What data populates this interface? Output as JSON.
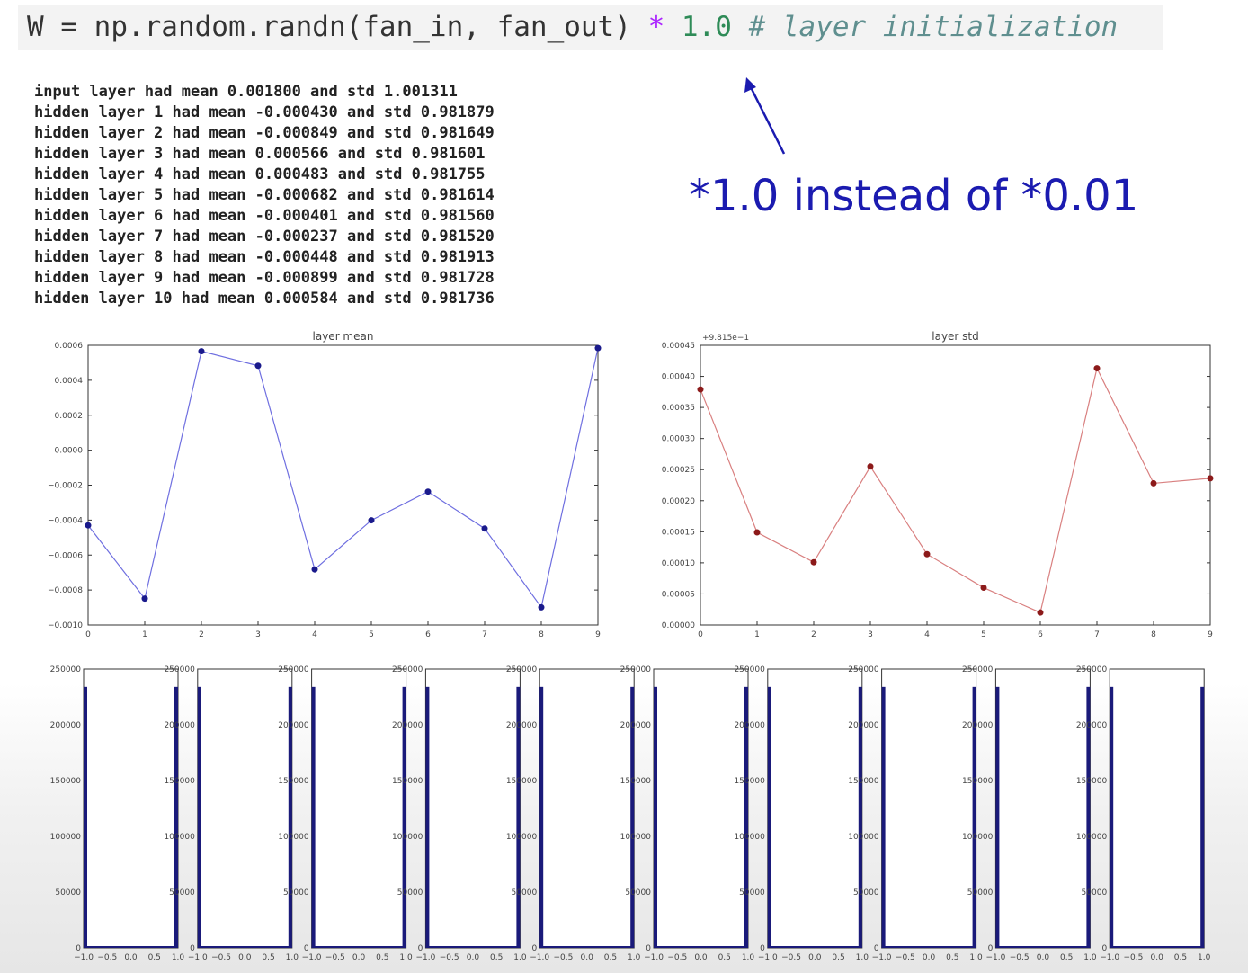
{
  "code": {
    "prefix": "W = np.random.randn(fan_in, fan_out) ",
    "op": "*",
    "num": " 1.0 ",
    "comment": "# layer initialization"
  },
  "log_lines": [
    "input layer had mean 0.001800 and std 1.001311",
    "hidden layer 1 had mean -0.000430 and std 0.981879",
    "hidden layer 2 had mean -0.000849 and std 0.981649",
    "hidden layer 3 had mean 0.000566 and std 0.981601",
    "hidden layer 4 had mean 0.000483 and std 0.981755",
    "hidden layer 5 had mean -0.000682 and std 0.981614",
    "hidden layer 6 had mean -0.000401 and std 0.981560",
    "hidden layer 7 had mean -0.000237 and std 0.981520",
    "hidden layer 8 had mean -0.000448 and std 0.981913",
    "hidden layer 9 had mean -0.000899 and std 0.981728",
    "hidden layer 10 had mean 0.000584 and std 0.981736"
  ],
  "annotation": "*1.0 instead of *0.01",
  "colors": {
    "mean_line": "#6f6fe0",
    "mean_marker": "#1a1a8c",
    "std_line": "#d98080",
    "std_marker": "#8c1a1a",
    "hist_bar": "#1a1a7a",
    "annotation": "#1b1bb0"
  },
  "chart_data": [
    {
      "type": "line",
      "title": "layer mean",
      "x": [
        0,
        1,
        2,
        3,
        4,
        5,
        6,
        7,
        8,
        9
      ],
      "y": [
        -0.00043,
        -0.000849,
        0.000566,
        0.000483,
        -0.000682,
        -0.000401,
        -0.000237,
        -0.000448,
        -0.000899,
        0.000584
      ],
      "xlim": [
        0,
        9
      ],
      "ylim": [
        -0.001,
        0.0006
      ],
      "yticks": [
        0.0006,
        0.0004,
        0.0002,
        0.0,
        -0.0002,
        -0.0004,
        -0.0006,
        -0.0008,
        -0.001
      ],
      "ytick_labels": [
        "0.0006",
        "0.0004",
        "0.0002",
        "0.0000",
        "−0.0002",
        "−0.0004",
        "−0.0006",
        "−0.0008",
        "−0.0010"
      ],
      "xtick_labels": [
        "0",
        "1",
        "2",
        "3",
        "4",
        "5",
        "6",
        "7",
        "8",
        "9"
      ]
    },
    {
      "type": "line",
      "title": "layer std",
      "offset_label": "+9.815e−1",
      "x": [
        0,
        1,
        2,
        3,
        4,
        5,
        6,
        7,
        8,
        9
      ],
      "y": [
        0.000379,
        0.000149,
        0.000101,
        0.000255,
        0.000114,
        6e-05,
        2e-05,
        0.000413,
        0.000228,
        0.000236
      ],
      "xlim": [
        0,
        9
      ],
      "ylim": [
        0.0,
        0.00045
      ],
      "yticks": [
        0.00045,
        0.0004,
        0.00035,
        0.0003,
        0.00025,
        0.0002,
        0.00015,
        0.0001,
        5e-05,
        0.0
      ],
      "ytick_labels": [
        "0.00045",
        "0.00040",
        "0.00035",
        "0.00030",
        "0.00025",
        "0.00020",
        "0.00015",
        "0.00010",
        "0.00005",
        "0.00000"
      ],
      "xtick_labels": [
        "0",
        "1",
        "2",
        "3",
        "4",
        "5",
        "6",
        "7",
        "8",
        "9"
      ]
    },
    {
      "type": "bar",
      "subplots": 10,
      "ylim": [
        0,
        250000
      ],
      "yticks": [
        250000,
        200000,
        150000,
        100000,
        50000,
        0
      ],
      "ytick_labels": [
        "250000",
        "200000",
        "150000",
        "100000",
        "50000",
        "0"
      ],
      "xtick_labels": [
        "−1.0",
        "−0.5",
        "0.0",
        "0.5",
        "1.0"
      ],
      "histograms": [
        {
          "edges_values": {
            "at_neg1": 234000,
            "at_pos1": 234000
          }
        },
        {
          "edges_values": {
            "at_neg1": 234000,
            "at_pos1": 234000
          }
        },
        {
          "edges_values": {
            "at_neg1": 234000,
            "at_pos1": 234000
          }
        },
        {
          "edges_values": {
            "at_neg1": 234000,
            "at_pos1": 234000
          }
        },
        {
          "edges_values": {
            "at_neg1": 234000,
            "at_pos1": 234000
          }
        },
        {
          "edges_values": {
            "at_neg1": 234000,
            "at_pos1": 234000
          }
        },
        {
          "edges_values": {
            "at_neg1": 234000,
            "at_pos1": 234000
          }
        },
        {
          "edges_values": {
            "at_neg1": 234000,
            "at_pos1": 234000
          }
        },
        {
          "edges_values": {
            "at_neg1": 234000,
            "at_pos1": 234000
          }
        },
        {
          "edges_values": {
            "at_neg1": 234000,
            "at_pos1": 234000
          }
        }
      ]
    }
  ]
}
